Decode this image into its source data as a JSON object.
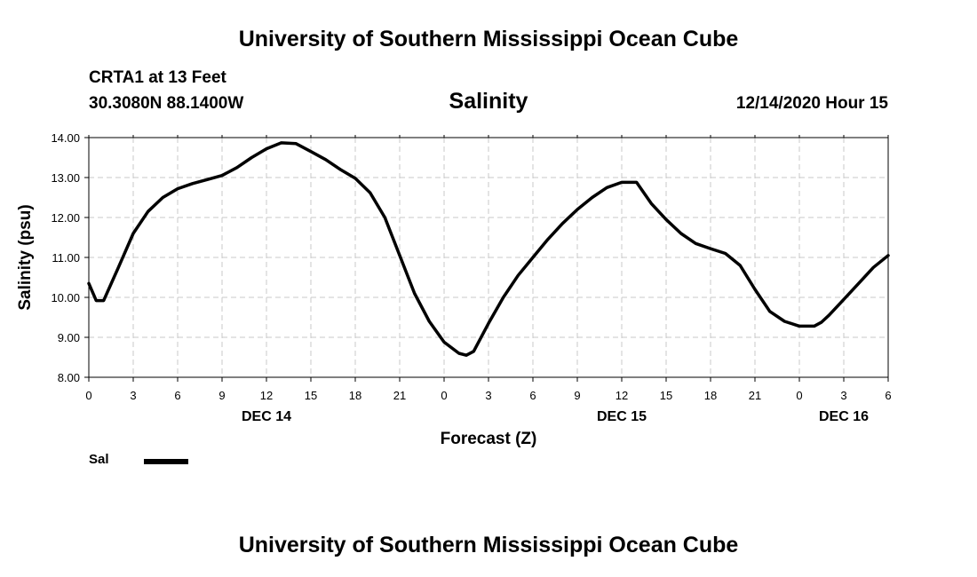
{
  "header": {
    "title": "University of Southern Mississippi Ocean Cube",
    "station": "CRTA1 at 13 Feet",
    "coords": "30.3080N 88.1400W",
    "variable": "Salinity",
    "datetime": "12/14/2020 Hour 15"
  },
  "footer": {
    "title": "University of Southern Mississippi Ocean Cube"
  },
  "chart_data": {
    "type": "line",
    "title": "Salinity",
    "xlabel": "Forecast (Z)",
    "ylabel": "Salinity (psu)",
    "ylim": [
      8.0,
      14.0
    ],
    "xlim": [
      0,
      54
    ],
    "grid": true,
    "yticks": [
      8,
      9,
      10,
      11,
      12,
      13,
      14
    ],
    "ytick_labels": [
      "8.00",
      "9.00",
      "10.00",
      "11.00",
      "12.00",
      "13.00",
      "14.00"
    ],
    "xticks": [
      0,
      3,
      6,
      9,
      12,
      15,
      18,
      21,
      24,
      27,
      30,
      33,
      36,
      39,
      42,
      45,
      48,
      51,
      54
    ],
    "xtick_labels": [
      "0",
      "3",
      "6",
      "9",
      "12",
      "15",
      "18",
      "21",
      "0",
      "3",
      "6",
      "9",
      "12",
      "15",
      "18",
      "21",
      "0",
      "3",
      "6"
    ],
    "date_labels": [
      {
        "x": 12,
        "label": "DEC 14"
      },
      {
        "x": 36,
        "label": "DEC 15"
      },
      {
        "x": 51,
        "label": "DEC 16"
      }
    ],
    "legend": {
      "position": "bottom-left",
      "entries": [
        "Sal"
      ]
    },
    "series": [
      {
        "name": "Sal",
        "color": "#000000",
        "x": [
          0,
          0.5,
          1,
          2,
          3,
          4,
          5,
          6,
          7,
          8,
          9,
          10,
          11,
          12,
          13,
          14,
          15,
          16,
          17,
          18,
          19,
          20,
          21,
          22,
          23,
          24,
          25,
          25.5,
          26,
          27,
          28,
          29,
          30,
          31,
          32,
          33,
          34,
          35,
          36,
          37,
          38,
          39,
          40,
          41,
          42,
          43,
          44,
          45,
          46,
          47,
          48,
          49,
          49.5,
          50,
          51,
          52,
          53,
          54
        ],
        "y": [
          10.35,
          9.92,
          9.92,
          10.75,
          11.6,
          12.15,
          12.5,
          12.72,
          12.85,
          12.95,
          13.05,
          13.25,
          13.5,
          13.72,
          13.87,
          13.85,
          13.65,
          13.45,
          13.2,
          12.98,
          12.62,
          12.0,
          11.05,
          10.1,
          9.4,
          8.88,
          8.6,
          8.55,
          8.65,
          9.35,
          10.0,
          10.55,
          11.0,
          11.45,
          11.85,
          12.2,
          12.5,
          12.75,
          12.88,
          12.88,
          12.35,
          11.95,
          11.6,
          11.35,
          11.22,
          11.1,
          10.8,
          10.2,
          9.65,
          9.4,
          9.28,
          9.28,
          9.38,
          9.55,
          9.95,
          10.35,
          10.75,
          11.05
        ]
      }
    ]
  }
}
